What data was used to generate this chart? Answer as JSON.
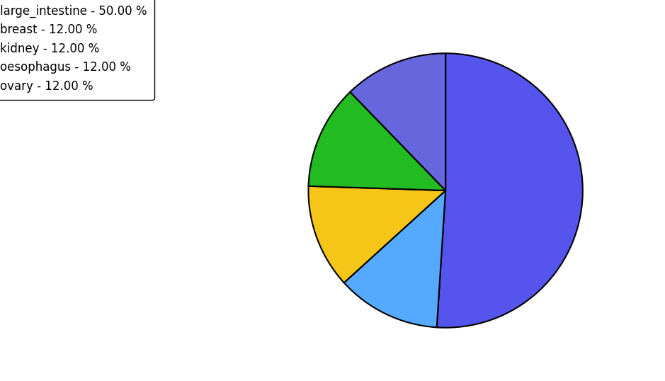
{
  "labels": [
    "large_intestine",
    "ovary",
    "oesophagus",
    "kidney",
    "breast"
  ],
  "values": [
    50,
    12,
    12,
    12,
    12
  ],
  "pie_colors": [
    "#5555ee",
    "#55aaff",
    "#f5c518",
    "#22bb22",
    "#6666dd"
  ],
  "legend_labels": [
    "large_intestine - 50.00 %",
    "breast - 12.00 %",
    "kidney - 12.00 %",
    "oesophagus - 12.00 %",
    "ovary - 12.00 %"
  ],
  "legend_colors": [
    "#5555ee",
    "#6666dd",
    "#22bb22",
    "#f5c518",
    "#55aaff"
  ],
  "startangle": 90,
  "figsize": [
    9.39,
    5.38
  ],
  "background_color": "#ffffff"
}
